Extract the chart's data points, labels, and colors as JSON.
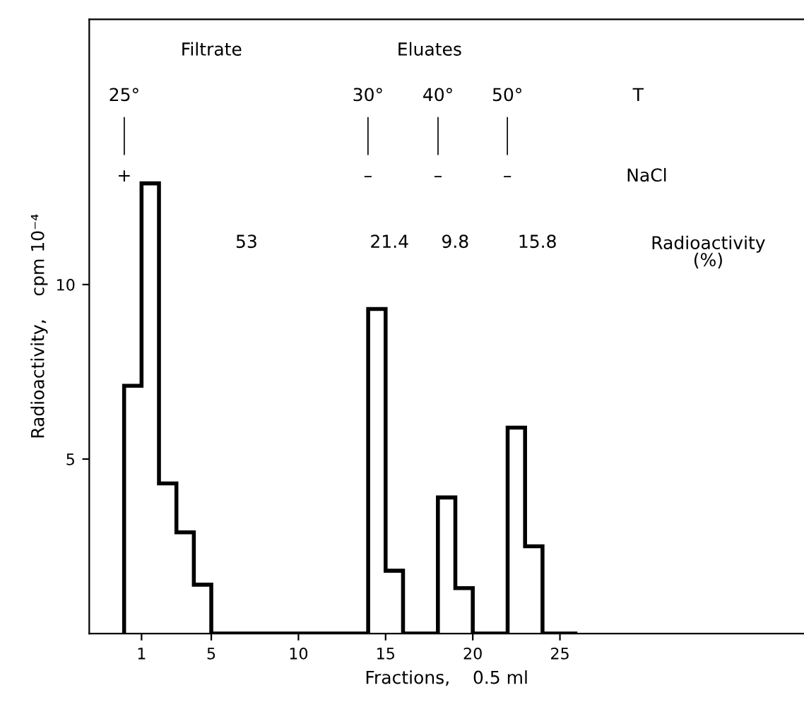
{
  "chart_data": {
    "type": "histogram",
    "xlabel": "Fractions,    0.5 ml",
    "ylabel": "Radioactivity,    cpm 10⁻⁴",
    "bins": [
      0,
      1,
      2,
      3,
      4,
      5,
      6,
      7,
      8,
      9,
      10,
      11,
      12,
      13,
      14,
      15,
      16,
      17,
      18,
      19,
      20,
      21,
      22,
      23,
      24,
      25,
      26
    ],
    "values": [
      7.1,
      12.9,
      4.3,
      2.9,
      1.4,
      0,
      0,
      0,
      0,
      0,
      0,
      0,
      0,
      0,
      9.3,
      1.8,
      0,
      0,
      3.9,
      1.3,
      0,
      0,
      5.9,
      2.5,
      0,
      0
    ],
    "color": "#000000",
    "xlim": [
      -2,
      39
    ],
    "xticks": [
      1,
      5,
      10,
      15,
      20,
      25
    ],
    "ylim": [
      0,
      17.6
    ],
    "yticks": [
      5,
      10
    ],
    "grid": false,
    "legend": false,
    "annotations": [
      "Filtrate",
      "Eluates",
      "25°",
      "30°",
      "40°",
      "50°",
      "T",
      "+",
      "–",
      "–",
      "–",
      "NaCl",
      "53",
      "21.4",
      "9.8",
      "15.8",
      "Radioactivity\n(%)"
    ]
  }
}
